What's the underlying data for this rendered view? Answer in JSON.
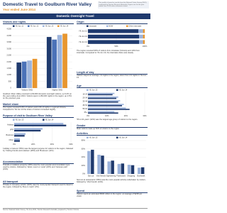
{
  "header": {
    "title": "Domestic Travel to Goulburn River Valley",
    "subtitle": "Year ended June 2014",
    "note": "This profile is based on results from the National Visitor Survey (NVS) conducted by Tourism Research Australia. Figures are for the year ended June 2014 unless otherwise stated."
  },
  "section_title": "Domestic Overnight Travel",
  "left": {
    "visitors_heading": "Visitors and nights",
    "visitors_text": "Goulburn River Valley received 2,230,000 domestic overnight visitors, up 6.2% on the year ending June 2013. Visitors spent 4,150,000 nights in the region, up 2.5% on the previous year.",
    "share_heading": "Market share",
    "share_text": "The region received 9.5% of visitors and 4.3% of nights in regional Victoria. Compared to YE Jun 13 the share of visitors increased slightly.",
    "purpose_heading": "Purpose of visit to Goulburn River Valley",
    "purpose_text": "'Holiday or leisure' (55%) was the largest purpose for visitors to the region, followed by 'Visiting friends and relatives' (28%) and 'Business' (11%).",
    "accom_heading": "Accommodation",
    "accom_text": "'Friends or relatives property' (36%) was the most popular accommodation type used by visitors, followed by 'Hotel, resort or motel' (22%) and 'Caravan park' (15%).",
    "transport_heading": "All transport",
    "transport_text": "'Private or company vehicle' (92%) was the most popular transport used to travel to the region, followed by 'Bus or coach' (3%)."
  },
  "right": {
    "origin_heading": "Origin",
    "origin_text": "The region received 90% of visitors from intrastate (Victoria) and 10% from interstate. Compared to YE Jun 13, the interstate share was steady.",
    "stay_heading": "Length of stay",
    "stay_text": "Visitors stayed on average 1.9 nights in the region, down from 2.0 nights in YE Jun 13.",
    "age_heading": "Age",
    "age_text": "'55 to 64 years' (22%) was the largest age group of visitors to the region.",
    "gender_heading": "Gender",
    "gender_text": "Male visitors made up 52% of visitors to the region.",
    "activities_heading": "Activities",
    "activities_text": "'Eat out at restaurants' (58%) was the most popular activity undertaken by visitors, followed by 'Visit friends' (44%).",
    "spend_heading": "Spend",
    "spend_text": "Visitors spent an estimated $530 million in the region, an average of $238 per visitor."
  },
  "footer": "Source: National Visitor Survey, YE June 2014, Tourism Research Australia; prepared by Tourism Victoria",
  "charts": {
    "visitors": {
      "type": "bar",
      "categories": [
        "Visitors ('000)",
        "Nights ('000)"
      ],
      "series": [
        {
          "name": "YE Jun 11",
          "color": "#1f3a6e",
          "values": [
            1950,
            3900
          ]
        },
        {
          "name": "YE Jun 12",
          "color": "#4b72b8",
          "values": [
            2020,
            3700
          ]
        },
        {
          "name": "YE Jun 13",
          "color": "#9db4dc",
          "values": [
            2100,
            4050
          ]
        },
        {
          "name": "YE Jun 14",
          "color": "#e8962e",
          "values": [
            2230,
            4150
          ]
        }
      ],
      "ylim": [
        0,
        4500
      ],
      "yticks": [
        0,
        500,
        {
          "value": 1000,
          "label": "1,000"
        },
        {
          "value": 1500,
          "label": "1,500"
        },
        {
          "value": 2000,
          "label": "2,000"
        },
        {
          "value": 2500,
          "label": "2,500"
        },
        {
          "value": 3000,
          "label": "3,000"
        },
        {
          "value": 3500,
          "label": "3,500"
        },
        {
          "value": 4000,
          "label": "4,000"
        },
        {
          "value": 4500,
          "label": "4,500"
        }
      ],
      "grid": true
    },
    "purpose": {
      "type": "hbar",
      "categories": [
        "Holiday",
        "VFR",
        "Business",
        "Other"
      ],
      "series": [
        {
          "name": "YE Jun 13",
          "color": "#9db4dc",
          "values": [
            52,
            30,
            12,
            6
          ]
        },
        {
          "name": "YE Jun 14",
          "color": "#1f3a6e",
          "values": [
            55,
            28,
            11,
            6
          ]
        }
      ],
      "xlim": [
        0,
        60
      ],
      "xticks": [
        {
          "value": 0,
          "label": "0%"
        },
        {
          "value": 20,
          "label": "20%"
        },
        {
          "value": 40,
          "label": "40%"
        },
        {
          "value": 60,
          "label": "60%"
        }
      ],
      "grid": true
    },
    "origin": {
      "type": "stacked_hbar",
      "categories": [
        "YE Jun 12",
        "YE Jun 13",
        "YE Jun 14"
      ],
      "series": [
        {
          "name": "Intrastate",
          "color": "#1f3a6e",
          "values": [
            89,
            90,
            90
          ]
        },
        {
          "name": "NSW",
          "color": "#9db4dc",
          "values": [
            8,
            7,
            7
          ]
        },
        {
          "name": "Other interstate",
          "color": "#e8962e",
          "values": [
            3,
            3,
            3
          ]
        }
      ],
      "xlim": [
        0,
        100
      ],
      "xticks": [
        {
          "value": 0,
          "label": "0%"
        },
        {
          "value": 50,
          "label": "50%"
        },
        {
          "value": 100,
          "label": "100%"
        }
      ],
      "grid": true
    },
    "age": {
      "type": "hbar",
      "categories": [
        "15-24",
        "25-34",
        "35-44",
        "45-54",
        "55-64",
        "65+"
      ],
      "series": [
        {
          "name": "YE Jun 13",
          "color": "#9db4dc",
          "values": [
            14,
            16,
            17,
            19,
            20,
            14
          ]
        },
        {
          "name": "YE Jun 14",
          "color": "#1f3a6e",
          "values": [
            13,
            15,
            16,
            18,
            22,
            16
          ]
        }
      ],
      "xlim": [
        0,
        30
      ],
      "xticks": [
        {
          "value": 0,
          "label": "0%"
        },
        {
          "value": 10,
          "label": "10%"
        },
        {
          "value": 20,
          "label": "20%"
        },
        {
          "value": 30,
          "label": "30%"
        }
      ],
      "grid": true
    },
    "activities": {
      "type": "bar",
      "categories": [
        "Eat out",
        "Visit friends",
        "Sightseeing",
        "Pubs/clubs",
        "Shopping",
        "Bushwalk"
      ],
      "series": [
        {
          "name": "YE Jun 13",
          "color": "#9db4dc",
          "values": [
            55,
            46,
            30,
            24,
            22,
            15
          ]
        },
        {
          "name": "YE Jun 14",
          "color": "#1f3a6e",
          "values": [
            58,
            44,
            32,
            25,
            21,
            16
          ]
        }
      ],
      "ylim": [
        0,
        80
      ],
      "yticks": [
        {
          "value": 0,
          "label": "0%"
        },
        {
          "value": 20,
          "label": "20%"
        },
        {
          "value": 40,
          "label": "40%"
        },
        {
          "value": 60,
          "label": "60%"
        },
        {
          "value": 80,
          "label": "80%"
        }
      ],
      "grid": true
    }
  }
}
